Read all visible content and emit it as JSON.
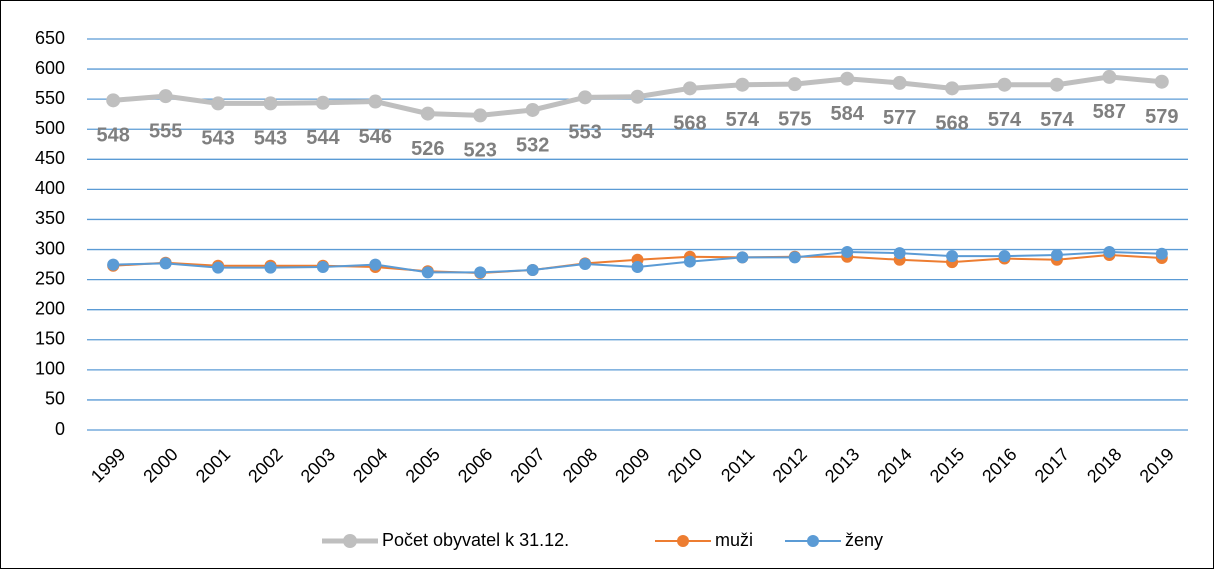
{
  "chart_data": {
    "type": "line",
    "categories": [
      "1999",
      "2000",
      "2001",
      "2002",
      "2003",
      "2004",
      "2005",
      "2006",
      "2007",
      "2008",
      "2009",
      "2010",
      "2011",
      "2012",
      "2013",
      "2014",
      "2015",
      "2016",
      "2017",
      "2018",
      "2019"
    ],
    "series": [
      {
        "name": "Počet obyvatel k 31.12.",
        "color": "#bfbfbf",
        "data_labels": true,
        "values": [
          548,
          555,
          543,
          543,
          544,
          546,
          526,
          523,
          532,
          553,
          554,
          568,
          574,
          575,
          584,
          577,
          568,
          574,
          574,
          587,
          579
        ]
      },
      {
        "name": "muži",
        "color": "#ed7d31",
        "values": [
          273,
          278,
          273,
          273,
          273,
          271,
          264,
          261,
          266,
          277,
          283,
          288,
          287,
          288,
          288,
          283,
          279,
          285,
          283,
          291,
          286
        ]
      },
      {
        "name": "ženy",
        "color": "#5b9bd5",
        "values": [
          275,
          277,
          270,
          270,
          271,
          275,
          262,
          262,
          266,
          276,
          271,
          280,
          287,
          287,
          296,
          294,
          289,
          289,
          291,
          296,
          293
        ]
      }
    ],
    "ylim": [
      0,
      650
    ],
    "yticks": [
      0,
      50,
      100,
      150,
      200,
      250,
      300,
      350,
      400,
      450,
      500,
      550,
      600,
      650
    ],
    "grid": true,
    "grid_color": "#5b9bd5",
    "legend": "bottom"
  }
}
